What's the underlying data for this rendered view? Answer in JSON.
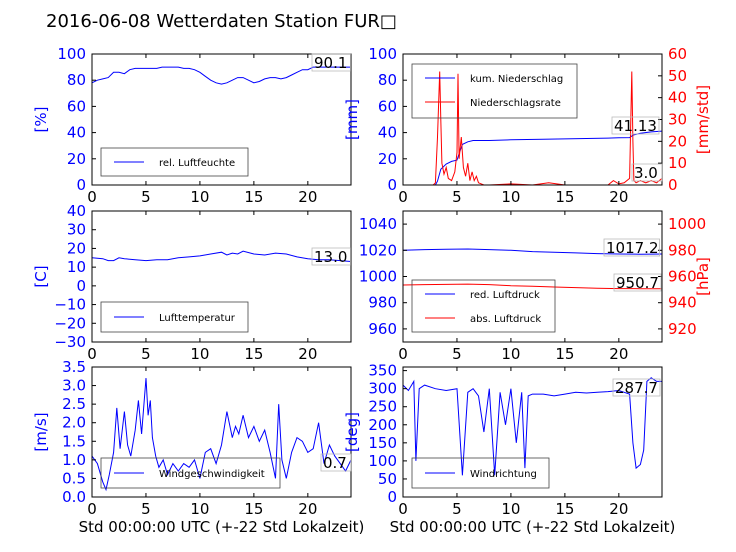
{
  "title": "2016-06-08 Wetterdaten Station FUR□",
  "colors": {
    "blue": "#0000ff",
    "red": "#ff0000",
    "lightblue": "#8080ff",
    "black": "#000000"
  },
  "chart_data": [
    {
      "id": "humidity",
      "type": "line",
      "ylabel": "[%]",
      "ylim": [
        0,
        100
      ],
      "xlim": [
        0,
        24
      ],
      "yticks": [
        "0",
        "20",
        "40",
        "60",
        "80",
        "100"
      ],
      "xticks": [
        "0",
        "5",
        "10",
        "15",
        "20"
      ],
      "legend": [
        "rel. Luftfeuchte"
      ],
      "annotation": "90.1",
      "series": [
        {
          "name": "rel. Luftfeuchte",
          "color": "#0000ff",
          "x": [
            0,
            0.5,
            1,
            1.5,
            2,
            2.5,
            3,
            3.5,
            4,
            4.5,
            5,
            5.5,
            6,
            6.5,
            7,
            7.5,
            8,
            8.5,
            9,
            9.5,
            10,
            10.5,
            11,
            11.5,
            12,
            12.5,
            13,
            13.5,
            14,
            14.5,
            15,
            15.5,
            16,
            16.5,
            17,
            17.5,
            18,
            18.5,
            19,
            19.5,
            20,
            20.5,
            21,
            21.5,
            22,
            22.5,
            23,
            23.5,
            24
          ],
          "y": [
            78,
            80,
            81,
            82,
            86,
            86,
            85,
            88,
            89,
            89,
            89,
            89,
            89,
            90,
            90,
            90,
            90,
            89,
            89,
            88,
            86,
            83,
            80,
            78,
            77,
            78,
            80,
            82,
            82,
            80,
            78,
            79,
            81,
            82,
            82,
            81,
            82,
            84,
            86,
            88,
            88,
            90,
            90,
            90,
            90,
            90,
            90,
            90,
            90
          ]
        }
      ]
    },
    {
      "id": "precipitation",
      "type": "line",
      "ylabel": "[mm]",
      "ylabel2": "[mm/std]",
      "ylim": [
        0,
        100
      ],
      "ylim2": [
        0,
        60
      ],
      "xlim": [
        0,
        24
      ],
      "yticks": [
        "0",
        "20",
        "40",
        "60",
        "80",
        "100"
      ],
      "yticks2": [
        "0",
        "10",
        "20",
        "30",
        "40",
        "50",
        "60"
      ],
      "xticks": [
        "0",
        "5",
        "10",
        "15",
        "20"
      ],
      "legend": [
        "kum. Niederschlag",
        "Niederschlagsrate"
      ],
      "annotations": [
        "41.13",
        "3.0"
      ],
      "series": [
        {
          "name": "kum. Niederschlag",
          "color": "#0000ff",
          "axis": "left",
          "x": [
            0,
            3,
            3.2,
            3.5,
            4,
            4.5,
            5,
            5.2,
            5.5,
            6,
            6.5,
            8,
            10,
            13,
            15,
            17,
            19,
            20,
            21,
            21.3,
            22,
            23,
            24
          ],
          "y": [
            0,
            0,
            3,
            12,
            16,
            18,
            19,
            24,
            31,
            33,
            34,
            34,
            34.5,
            35,
            35.2,
            35.5,
            35.8,
            36,
            36.2,
            38,
            39.5,
            40.5,
            41.13
          ]
        },
        {
          "name": "Niederschlagsrate",
          "color": "#ff0000",
          "axis": "right",
          "x": [
            0,
            2.8,
            3,
            3.2,
            3.4,
            3.5,
            3.6,
            3.8,
            4,
            4.2,
            4.5,
            4.8,
            5,
            5.1,
            5.2,
            5.4,
            5.6,
            5.8,
            6,
            6.2,
            6.4,
            6.6,
            6.8,
            7,
            7.5,
            8,
            10,
            12,
            13.5,
            15,
            17,
            19,
            19.5,
            20,
            20.5,
            21,
            21.2,
            21.3,
            21.4,
            21.6,
            22,
            22.5,
            23,
            23.5,
            24
          ],
          "y": [
            0,
            0,
            1,
            22,
            52,
            30,
            10,
            5,
            8,
            3,
            2,
            6,
            15,
            51,
            12,
            22,
            8,
            4,
            10,
            2,
            6,
            2,
            4,
            1,
            0,
            0,
            0.5,
            0,
            1,
            0,
            0,
            0,
            2,
            0.5,
            1,
            3,
            52,
            20,
            2,
            1,
            2,
            1,
            2,
            1,
            3
          ]
        }
      ]
    },
    {
      "id": "temperature",
      "type": "line",
      "ylabel": "[C]",
      "ylim": [
        -30,
        40
      ],
      "xlim": [
        0,
        24
      ],
      "yticks": [
        "−30",
        "−20",
        "−10",
        "0",
        "10",
        "20",
        "30",
        "40"
      ],
      "xticks": [
        "0",
        "5",
        "10",
        "15",
        "20"
      ],
      "legend": [
        "Lufttemperatur"
      ],
      "annotation": "13.0",
      "series": [
        {
          "name": "Lufttemperatur",
          "color": "#0000ff",
          "x": [
            0,
            1,
            1.5,
            2,
            2.5,
            3,
            4,
            5,
            6,
            7,
            8,
            9,
            10,
            11,
            12,
            12.5,
            13,
            13.5,
            14,
            15,
            16,
            17,
            18,
            19,
            20,
            21,
            22,
            23,
            24
          ],
          "y": [
            15,
            14.5,
            13.5,
            13.5,
            15,
            14.5,
            14,
            13.5,
            14,
            14,
            15,
            15.5,
            16,
            17,
            18,
            16.5,
            17.5,
            17,
            18.5,
            17,
            16.5,
            17.5,
            17,
            15.5,
            14.5,
            14,
            14,
            13.5,
            13
          ]
        }
      ]
    },
    {
      "id": "pressure",
      "type": "line",
      "ylabel2": "[hPa]",
      "ylim": [
        950,
        1050
      ],
      "ylim2": [
        910,
        1010
      ],
      "xlim": [
        0,
        24
      ],
      "yticks": [
        "960",
        "980",
        "1000",
        "1020",
        "1040"
      ],
      "yticks2": [
        "920",
        "940",
        "960",
        "980",
        "1000"
      ],
      "xticks": [
        "0",
        "5",
        "10",
        "15",
        "20"
      ],
      "legend": [
        "red. Luftdruck",
        "abs. Luftdruck"
      ],
      "annotations": [
        "1017.2",
        "950.7"
      ],
      "series": [
        {
          "name": "red. Luftdruck",
          "color": "#0000ff",
          "axis": "left",
          "x": [
            0,
            2,
            4,
            6,
            8,
            10,
            12,
            14,
            16,
            18,
            20,
            22,
            24
          ],
          "y": [
            1020,
            1020.5,
            1020.8,
            1021,
            1020.5,
            1020,
            1019,
            1018.5,
            1018,
            1017.5,
            1017.2,
            1017,
            1017.2
          ]
        },
        {
          "name": "abs. Luftdruck",
          "color": "#ff0000",
          "axis": "right",
          "x": [
            0,
            2,
            4,
            6,
            8,
            10,
            12,
            14,
            16,
            18,
            20,
            22,
            24
          ],
          "y": [
            953.5,
            953.8,
            954,
            954.2,
            953.8,
            953,
            952.5,
            952,
            951.5,
            951,
            950.8,
            950.7,
            950.7
          ]
        }
      ]
    },
    {
      "id": "windspeed",
      "type": "line",
      "ylabel": "[m/s]",
      "ylim": [
        0,
        3.5
      ],
      "xlim": [
        0,
        24
      ],
      "yticks": [
        "0.0",
        "0.5",
        "1.0",
        "1.5",
        "2.0",
        "2.5",
        "3.0",
        "3.5"
      ],
      "xticks": [
        "0",
        "5",
        "10",
        "15",
        "20"
      ],
      "xlabel": "Std 00:00:00 UTC (+-22 Std Lokalzeit)",
      "legend": [
        "Windgeschwindigkeit"
      ],
      "annotation": "0.7",
      "series": [
        {
          "name": "Windgeschwindigkeit",
          "color": "#0000ff",
          "x": [
            0,
            0.5,
            1,
            1.3,
            1.6,
            2,
            2.3,
            2.6,
            3,
            3.3,
            3.6,
            4,
            4.3,
            4.6,
            5,
            5.2,
            5.4,
            5.6,
            5.9,
            6.2,
            6.6,
            7,
            7.5,
            8,
            8.5,
            9,
            9.5,
            10,
            10.5,
            11,
            11.5,
            12,
            12.5,
            13,
            13.3,
            13.6,
            14,
            14.5,
            15,
            15.5,
            16,
            16.5,
            17,
            17.3,
            17.6,
            18,
            18.5,
            19,
            19.5,
            20,
            20.5,
            21,
            21.5,
            22,
            22.5,
            23,
            23.5,
            24
          ],
          "y": [
            1.1,
            0.9,
            0.4,
            0.2,
            0.6,
            1.2,
            2.4,
            1.3,
            2.3,
            1.4,
            1.1,
            1.8,
            2.6,
            1.7,
            3.2,
            2.2,
            2.6,
            1.6,
            1.1,
            0.8,
            1.0,
            0.6,
            0.9,
            0.7,
            0.9,
            0.8,
            1.0,
            0.5,
            1.2,
            1.3,
            0.9,
            1.4,
            2.3,
            1.6,
            1.9,
            1.7,
            2.2,
            1.6,
            1.9,
            1.5,
            1.8,
            1.2,
            0.5,
            2.5,
            1.0,
            0.5,
            1.2,
            1.6,
            1.5,
            1.2,
            1.3,
            2.0,
            0.9,
            1.4,
            1.1,
            0.9,
            0.7,
            1.0
          ]
        }
      ]
    },
    {
      "id": "winddirection",
      "type": "line",
      "ylabel": "[deg]",
      "ylim": [
        0,
        360
      ],
      "xlim": [
        0,
        24
      ],
      "yticks": [
        "0",
        "50",
        "100",
        "150",
        "200",
        "250",
        "300",
        "350"
      ],
      "xticks": [
        "0",
        "5",
        "10",
        "15",
        "20"
      ],
      "xlabel": "Std 00:00:00 UTC (+-22 Std Lokalzeit)",
      "legend": [
        "Windrichtung"
      ],
      "annotation": "287.7",
      "series": [
        {
          "name": "Windrichtung",
          "color": "#0000ff",
          "x": [
            0,
            0.5,
            1,
            1.2,
            1.5,
            2,
            3,
            4,
            5,
            5.5,
            6,
            6.5,
            7,
            7.5,
            8,
            8.5,
            9,
            9.5,
            10,
            10.5,
            11,
            11.3,
            11.6,
            12,
            13,
            14,
            15,
            16,
            17,
            18,
            19,
            20,
            20.5,
            21,
            21.3,
            21.6,
            22,
            22.3,
            22.6,
            23,
            23.5,
            24
          ],
          "y": [
            310,
            295,
            320,
            100,
            300,
            310,
            300,
            295,
            300,
            60,
            290,
            300,
            280,
            180,
            300,
            60,
            290,
            200,
            300,
            150,
            290,
            80,
            280,
            285,
            285,
            280,
            285,
            290,
            288,
            290,
            292,
            295,
            290,
            285,
            150,
            80,
            90,
            130,
            320,
            330,
            320,
            320
          ]
        }
      ]
    }
  ]
}
